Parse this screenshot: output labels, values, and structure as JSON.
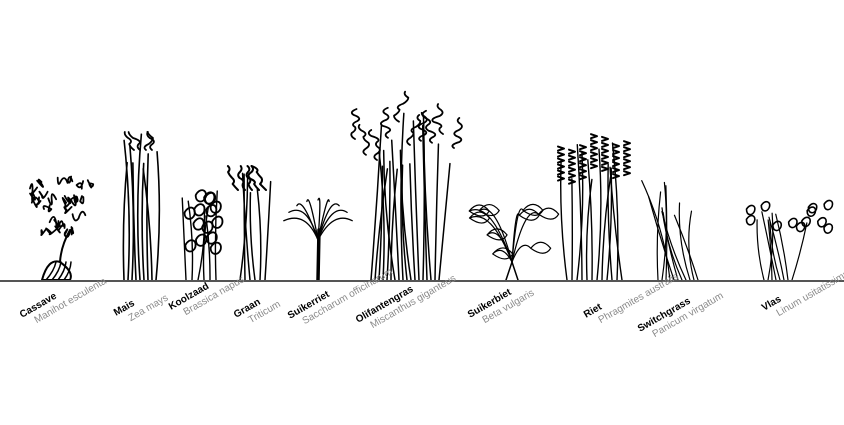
{
  "plants": [
    {
      "id": "cassave",
      "common": "Cassave",
      "latin": "Manihot esculenta",
      "icon": "cassava-plant-icon"
    },
    {
      "id": "mais",
      "common": "Mais",
      "latin": "Zea mays",
      "icon": "maize-plant-icon"
    },
    {
      "id": "koolzaad",
      "common": "Koolzaad",
      "latin": "Brassica napus",
      "icon": "rapeseed-plant-icon"
    },
    {
      "id": "graan",
      "common": "Graan",
      "latin": "Triticum",
      "icon": "wheat-plant-icon"
    },
    {
      "id": "suikerriet",
      "common": "Suikerriet",
      "latin": "Saccharum officinarum",
      "icon": "sugarcane-plant-icon"
    },
    {
      "id": "olifantengras",
      "common": "Olifantengras",
      "latin": "Miscanthus giganteus",
      "icon": "miscanthus-plant-icon"
    },
    {
      "id": "suikerbiet",
      "common": "Suikerbiet",
      "latin": "Beta vulgaris",
      "icon": "sugarbeet-plant-icon"
    },
    {
      "id": "riet",
      "common": "Riet",
      "latin": "Phragmites australis",
      "icon": "reed-plant-icon"
    },
    {
      "id": "switchgrass",
      "common": "Switchgrass",
      "latin": "Panicum virgatum",
      "icon": "switchgrass-plant-icon"
    },
    {
      "id": "vlas",
      "common": "Vlas",
      "latin": "Linum usitatissimum",
      "icon": "flax-plant-icon"
    }
  ],
  "colors": {
    "ink": "#000000",
    "latin": "#8a8a8a",
    "ground": "#555555"
  }
}
